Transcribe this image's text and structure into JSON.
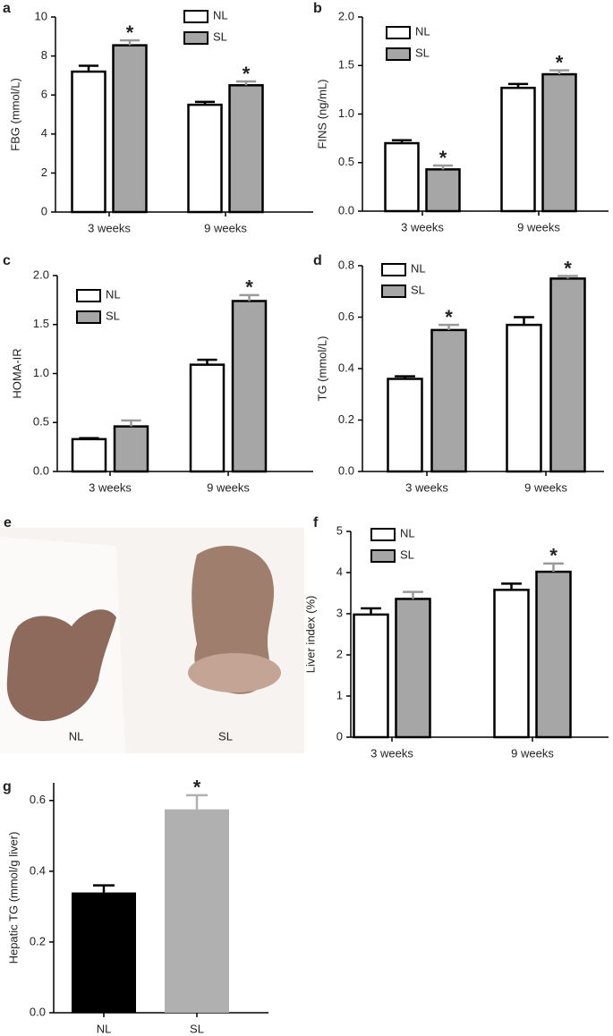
{
  "chart_data": [
    {
      "type": "bar",
      "panel": "a",
      "ylabel": "FBG (mmol/L)",
      "categories": [
        "3 weeks",
        "9 weeks"
      ],
      "ylim": [
        0,
        10
      ],
      "yticks": [
        0,
        2,
        4,
        6,
        8,
        10
      ],
      "series": [
        {
          "name": "NL",
          "color": "#ffffff",
          "error_color": "#000000",
          "values": [
            7.2,
            5.5
          ],
          "errors": [
            0.3,
            0.15
          ],
          "annotations": [
            null,
            null
          ]
        },
        {
          "name": "SL",
          "color": "#a6a6a6",
          "error_color": "#999999",
          "values": [
            8.55,
            6.5
          ],
          "errors": [
            0.25,
            0.2
          ],
          "annotations": [
            "*",
            "*"
          ]
        }
      ]
    },
    {
      "type": "bar",
      "panel": "b",
      "ylabel": "FINS (ng/mL)",
      "categories": [
        "3 weeks",
        "9 weeks"
      ],
      "ylim": [
        0,
        2
      ],
      "yticks": [
        {
          "value": 0,
          "label": "0.0"
        },
        0.5,
        {
          "value": 1,
          "label": "1.0"
        },
        1.5,
        {
          "value": 2,
          "label": "2.0"
        }
      ],
      "series": [
        {
          "name": "NL",
          "color": "#ffffff",
          "error_color": "#000000",
          "values": [
            0.7,
            1.27
          ],
          "errors": [
            0.03,
            0.04
          ],
          "annotations": [
            null,
            null
          ]
        },
        {
          "name": "SL",
          "color": "#a6a6a6",
          "error_color": "#999999",
          "values": [
            0.43,
            1.41
          ],
          "errors": [
            0.04,
            0.04
          ],
          "annotations": [
            "*",
            "*"
          ]
        }
      ]
    },
    {
      "type": "bar",
      "panel": "c",
      "ylabel": "HOMA-IR",
      "categories": [
        "3 weeks",
        "9 weeks"
      ],
      "ylim": [
        0,
        2
      ],
      "yticks": [
        {
          "value": 0,
          "label": "0.0"
        },
        0.5,
        {
          "value": 1,
          "label": "1.0"
        },
        1.5,
        {
          "value": 2,
          "label": "2.0"
        }
      ],
      "series": [
        {
          "name": "NL",
          "color": "#ffffff",
          "error_color": "#000000",
          "values": [
            0.33,
            1.09
          ],
          "errors": [
            0.01,
            0.05
          ],
          "annotations": [
            null,
            null
          ]
        },
        {
          "name": "SL",
          "color": "#a6a6a6",
          "error_color": "#999999",
          "values": [
            0.46,
            1.74
          ],
          "errors": [
            0.06,
            0.06
          ],
          "annotations": [
            null,
            "*"
          ]
        }
      ]
    },
    {
      "type": "bar",
      "panel": "d",
      "ylabel": "TG (mmol/L)",
      "categories": [
        "3 weeks",
        "9 weeks"
      ],
      "ylim": [
        0,
        0.8
      ],
      "yticks": [
        {
          "value": 0,
          "label": "0.0"
        },
        0.2,
        0.4,
        0.6,
        0.8
      ],
      "series": [
        {
          "name": "NL",
          "color": "#ffffff",
          "error_color": "#000000",
          "values": [
            0.36,
            0.57
          ],
          "errors": [
            0.01,
            0.03
          ],
          "annotations": [
            null,
            null
          ]
        },
        {
          "name": "SL",
          "color": "#a6a6a6",
          "error_color": "#999999",
          "values": [
            0.55,
            0.75
          ],
          "errors": [
            0.02,
            0.01
          ],
          "annotations": [
            "*",
            "*"
          ]
        }
      ]
    },
    {
      "type": "bar",
      "panel": "f",
      "ylabel": "Liver index (%)",
      "categories": [
        "3 weeks",
        "9 weeks"
      ],
      "ylim": [
        0,
        5
      ],
      "yticks": [
        0,
        1,
        2,
        3,
        4,
        5
      ],
      "series": [
        {
          "name": "NL",
          "color": "#ffffff",
          "error_color": "#000000",
          "values": [
            2.98,
            3.58
          ],
          "errors": [
            0.15,
            0.15
          ],
          "annotations": [
            null,
            null
          ]
        },
        {
          "name": "SL",
          "color": "#a6a6a6",
          "error_color": "#999999",
          "values": [
            3.36,
            4.02
          ],
          "errors": [
            0.17,
            0.2
          ],
          "annotations": [
            null,
            "*"
          ]
        }
      ]
    },
    {
      "type": "bar",
      "panel": "g",
      "ylabel": "Hepatic TG (mmol/g liver)",
      "categories": [
        "NL",
        "SL"
      ],
      "ylim": [
        0,
        0.65
      ],
      "yticks": [
        {
          "value": 0,
          "label": "0.0"
        },
        0.2,
        0.4,
        0.6
      ],
      "colors": [
        "#000000",
        "#b0b0b0"
      ],
      "values": [
        0.34,
        0.575
      ],
      "errors": [
        0.02,
        0.04
      ],
      "annotations": [
        null,
        "*"
      ]
    }
  ],
  "photo": {
    "panel": "e",
    "labels": [
      "NL",
      "SL"
    ]
  }
}
